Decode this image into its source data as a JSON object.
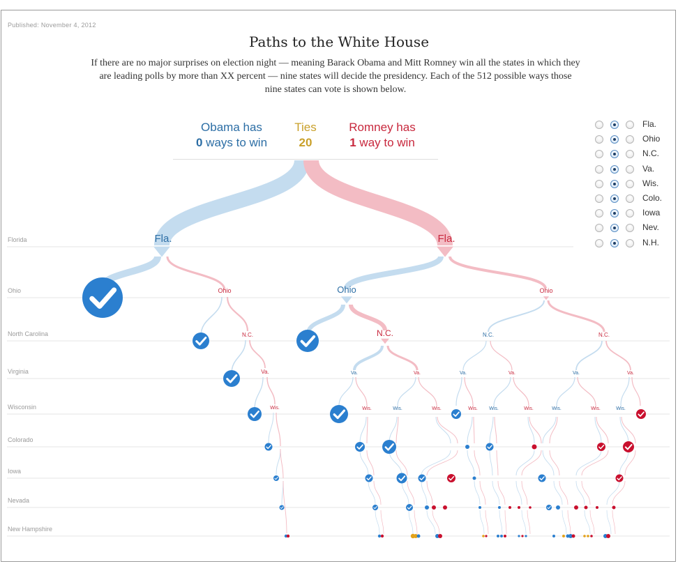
{
  "published": "Published: November 4, 2012",
  "title": "Paths to the White House",
  "intro": "If there are no major surprises on election night — meaning Barack Obama and Mitt Romney win all the states in which they are leading polls by more than XX percent — nine states will decide the presidency. Each of the 512 possible ways those nine states can vote is shown below.",
  "summary": {
    "obama_heading": "Obama has",
    "obama_count": "0",
    "obama_suffix": " ways to win",
    "ties_heading": "Ties",
    "ties_count": "20",
    "romney_heading": "Romney has",
    "romney_count": "1",
    "romney_suffix": " way to win"
  },
  "colors": {
    "obama": "#2b7fcf",
    "obama_light": "#c4dcef",
    "romney": "#c9102e",
    "romney_light": "#f3bcc4",
    "tie": "#e3a21a",
    "row_line": "#e6e6e6"
  },
  "rows": [
    "Florida",
    "Ohio",
    "North Carolina",
    "Virginia",
    "Wisconsin",
    "Colorado",
    "Iowa",
    "Nevada",
    "New Hampshire"
  ],
  "node_labels": {
    "fla_left": "Fla.",
    "fla_right": "Fla.",
    "ohio_a": "Ohio",
    "ohio_b": "Ohio",
    "ohio_c": "Ohio",
    "nc_a": "N.C.",
    "nc_b": "N.C.",
    "nc_c": "N.C.",
    "nc_d": "N.C.",
    "va": "Va.",
    "wis": "Wis."
  },
  "state_toggles": [
    {
      "state": "Fla.",
      "selected": "undecided"
    },
    {
      "state": "Ohio",
      "selected": "undecided"
    },
    {
      "state": "N.C.",
      "selected": "undecided"
    },
    {
      "state": "Va.",
      "selected": "undecided"
    },
    {
      "state": "Wis.",
      "selected": "undecided"
    },
    {
      "state": "Colo.",
      "selected": "undecided"
    },
    {
      "state": "Iowa",
      "selected": "undecided"
    },
    {
      "state": "Nev.",
      "selected": "undecided"
    },
    {
      "state": "N.H.",
      "selected": "undecided"
    }
  ],
  "icons": {
    "win_badge": "checkmark-icon",
    "radio": "radio-button-icon"
  }
}
